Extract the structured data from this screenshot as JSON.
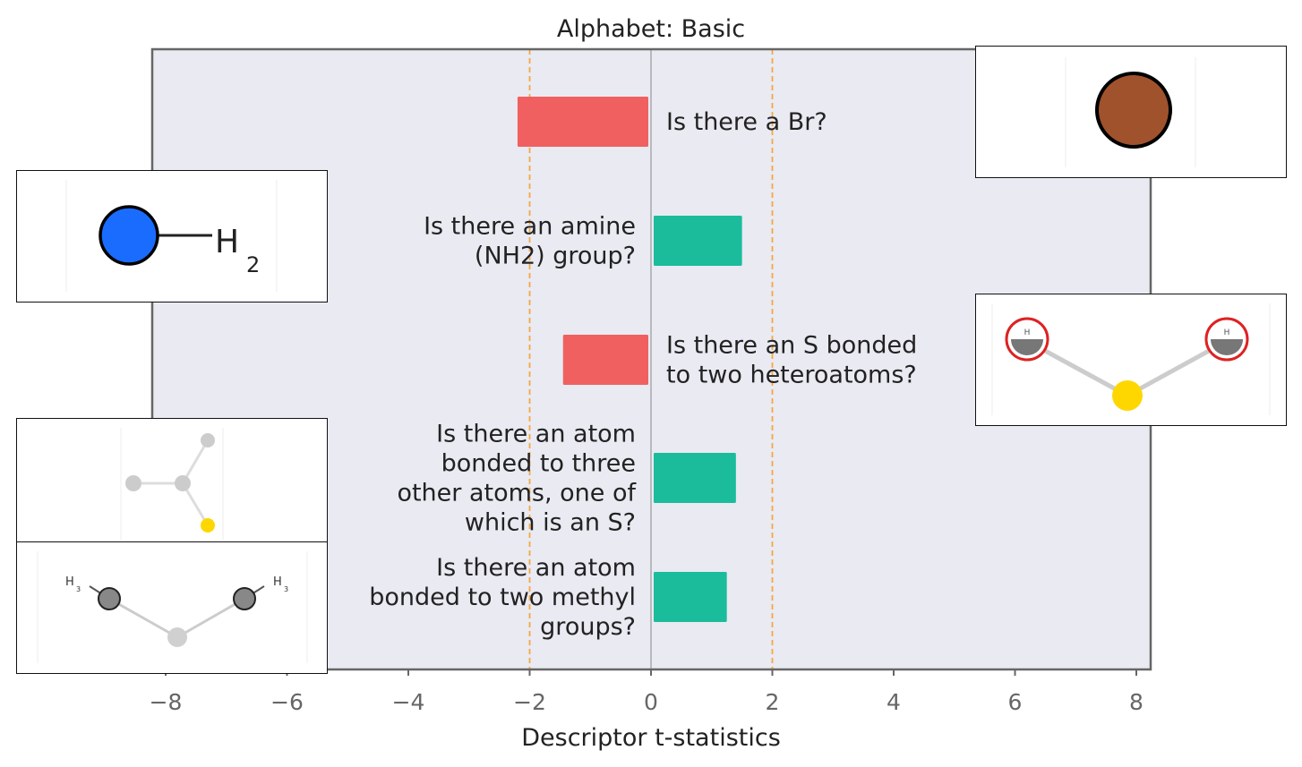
{
  "chart_data": {
    "type": "bar",
    "orientation": "horizontal",
    "title": "Alphabet: Basic",
    "xlabel": "Descriptor t-statistics",
    "xlim": [
      -8.2,
      8.2
    ],
    "xticks": [
      -8,
      -6,
      -4,
      -2,
      0,
      2,
      4,
      6,
      8
    ],
    "xtick_labels": [
      "−8",
      "−6",
      "−4",
      "−2",
      "0",
      "2",
      "4",
      "6",
      "8"
    ],
    "reference_lines": [
      -2,
      2
    ],
    "zero_line": 0,
    "bars": [
      {
        "label": "Is there a Br?",
        "value": -2.2
      },
      {
        "label": "Is there an amine\n(NH2) group?",
        "value": 1.5
      },
      {
        "label": "Is there an S bonded\nto two heteroatoms?",
        "value": -1.45
      },
      {
        "label": "Is there an atom\nbonded to three\nother atoms, one of\nwhich is an S?",
        "value": 1.4
      },
      {
        "label": "Is there an atom\nbonded to two methyl\ngroups?",
        "value": 1.25
      }
    ],
    "colors": {
      "positive": "#1abc9c",
      "negative": "#f06060",
      "background": "#e9eaf2",
      "reference": "#f5a742",
      "zero": "#999999",
      "frame": "#666666",
      "text": "#222222",
      "tick_text": "#666666"
    },
    "grid": false
  },
  "insets": [
    {
      "name": "bromine-atom-inset",
      "molecule_text": []
    },
    {
      "name": "amine-group-inset",
      "molecule_text": [
        "H",
        "2"
      ]
    },
    {
      "name": "sulfur-heteroatoms-inset",
      "molecule_text": [
        "H",
        "H"
      ]
    },
    {
      "name": "three-bonded-atom-inset",
      "molecule_text": []
    },
    {
      "name": "dimethyl-atom-inset",
      "molecule_text": [
        "H",
        "3",
        "H",
        "3"
      ]
    }
  ]
}
